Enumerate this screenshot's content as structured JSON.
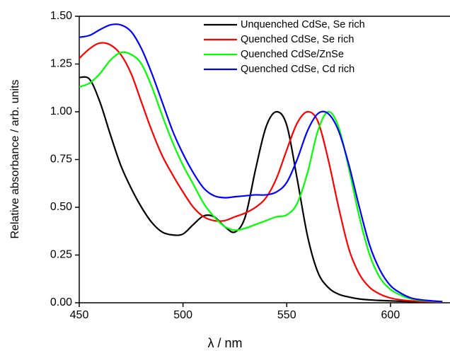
{
  "chart_data": {
    "type": "line",
    "xlabel": "λ / nm",
    "ylabel": "Relative absorbance / arb. units",
    "x": [
      450,
      455,
      460,
      465,
      470,
      475,
      480,
      485,
      490,
      495,
      500,
      505,
      510,
      515,
      520,
      525,
      530,
      535,
      540,
      545,
      550,
      555,
      560,
      565,
      570,
      575,
      580,
      585,
      590,
      595,
      600,
      605,
      610,
      615,
      620,
      625
    ],
    "series": [
      {
        "name": "Unquenched CdSe, Se rich",
        "color": "#000000",
        "values": [
          1.18,
          1.17,
          1.05,
          0.88,
          0.72,
          0.6,
          0.5,
          0.42,
          0.37,
          0.355,
          0.36,
          0.41,
          0.455,
          0.45,
          0.4,
          0.37,
          0.45,
          0.7,
          0.92,
          1.0,
          0.93,
          0.65,
          0.35,
          0.16,
          0.08,
          0.045,
          0.03,
          0.02,
          0.015,
          0.012,
          0.01,
          0.008,
          0.006,
          0.005,
          0.004,
          0.003
        ]
      },
      {
        "name": "Quenched CdSe, Se rich",
        "color": "#ff0000",
        "values": [
          1.28,
          1.33,
          1.36,
          1.35,
          1.3,
          1.2,
          1.05,
          0.9,
          0.77,
          0.67,
          0.58,
          0.5,
          0.45,
          0.43,
          0.43,
          0.45,
          0.47,
          0.5,
          0.55,
          0.65,
          0.8,
          0.94,
          1.0,
          0.95,
          0.75,
          0.5,
          0.28,
          0.15,
          0.08,
          0.045,
          0.025,
          0.015,
          0.01,
          0.007,
          0.005,
          0.004
        ]
      },
      {
        "name": "Quenched CdSe/ZnSe",
        "color": "#00ff00",
        "values": [
          1.13,
          1.15,
          1.2,
          1.27,
          1.31,
          1.3,
          1.25,
          1.13,
          0.98,
          0.84,
          0.72,
          0.62,
          0.52,
          0.45,
          0.4,
          0.38,
          0.39,
          0.41,
          0.43,
          0.45,
          0.46,
          0.52,
          0.68,
          0.9,
          1.0,
          0.92,
          0.7,
          0.45,
          0.25,
          0.13,
          0.07,
          0.04,
          0.02,
          0.012,
          0.008,
          0.005
        ]
      },
      {
        "name": "Quenched CdSe, Cd rich",
        "color": "#0000ff",
        "values": [
          1.39,
          1.4,
          1.43,
          1.455,
          1.455,
          1.42,
          1.33,
          1.2,
          1.05,
          0.9,
          0.78,
          0.68,
          0.6,
          0.56,
          0.55,
          0.555,
          0.56,
          0.565,
          0.565,
          0.58,
          0.63,
          0.75,
          0.9,
          0.99,
          0.99,
          0.9,
          0.72,
          0.5,
          0.3,
          0.17,
          0.09,
          0.05,
          0.025,
          0.015,
          0.01,
          0.006
        ]
      }
    ],
    "xlim": [
      450,
      628
    ],
    "xticks": [
      450,
      500,
      550,
      600
    ],
    "ylim": [
      0,
      1.5
    ],
    "yticks": [
      {
        "value": 0,
        "label": "0.00"
      },
      {
        "value": 0.25,
        "label": "0.25"
      },
      {
        "value": 0.5,
        "label": "0.50"
      },
      {
        "value": 0.75,
        "label": "0.75"
      },
      {
        "value": 1,
        "label": "1.00"
      },
      {
        "value": 1.25,
        "label": "1.25"
      },
      {
        "value": 1.5,
        "label": "1.50"
      }
    ],
    "legend": "upper right"
  }
}
